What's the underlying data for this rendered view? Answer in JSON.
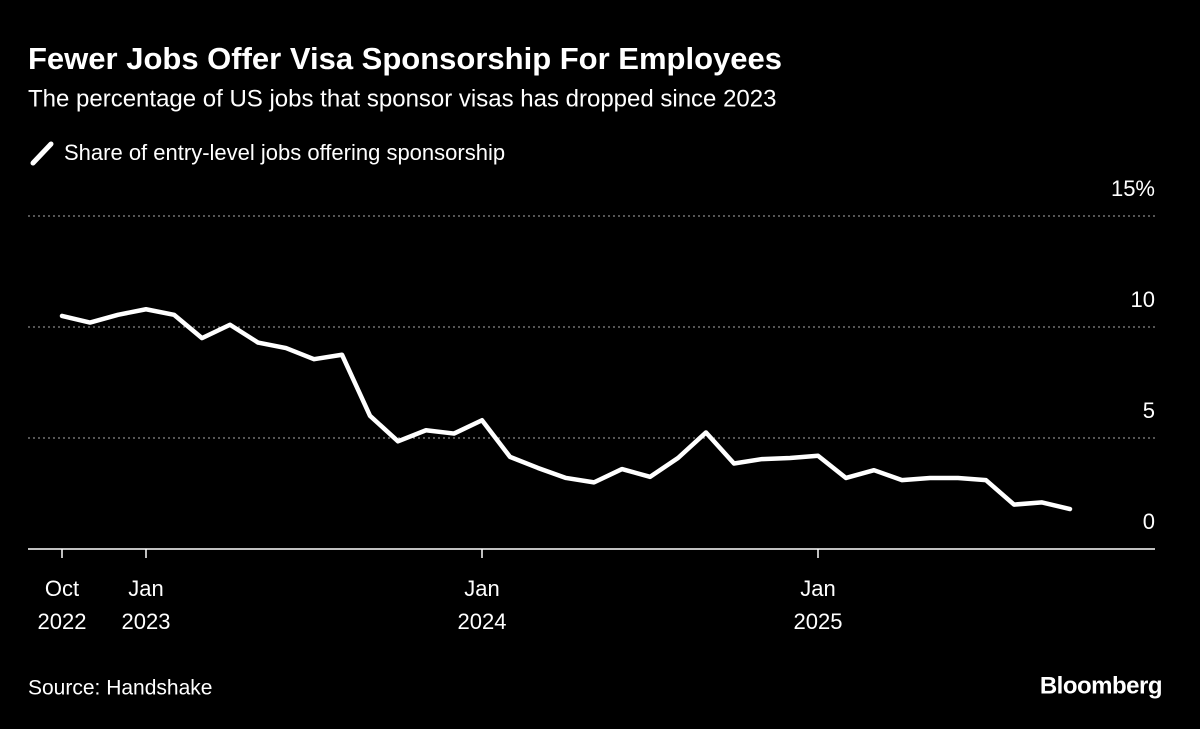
{
  "chart_data": {
    "type": "line",
    "title": "Fewer Jobs Offer Visa Sponsorship For Employees",
    "subtitle": "The percentage of US jobs that sponsor visas has dropped since 2023",
    "source": "Source: Handshake",
    "brand": "Bloomberg",
    "x": [
      "2022-10",
      "2022-11",
      "2022-12",
      "2023-01",
      "2023-02",
      "2023-03",
      "2023-04",
      "2023-05",
      "2023-06",
      "2023-07",
      "2023-08",
      "2023-09",
      "2023-10",
      "2023-11",
      "2023-12",
      "2024-01",
      "2024-02",
      "2024-03",
      "2024-04",
      "2024-05",
      "2024-06",
      "2024-07",
      "2024-08",
      "2024-09",
      "2024-10",
      "2024-11",
      "2024-12",
      "2025-01",
      "2025-02",
      "2025-03",
      "2025-04",
      "2025-05",
      "2025-06",
      "2025-07",
      "2025-08",
      "2025-09",
      "2025-10"
    ],
    "series": [
      {
        "name": "Share of entry-level jobs offering sponsorship",
        "color": "#ffffff",
        "values": [
          10.5,
          10.2,
          10.55,
          10.8,
          10.55,
          9.5,
          10.1,
          9.3,
          9.05,
          8.55,
          8.75,
          6.0,
          4.85,
          5.35,
          5.2,
          5.8,
          4.15,
          3.65,
          3.2,
          3.0,
          3.6,
          3.25,
          4.1,
          5.25,
          3.85,
          4.05,
          4.1,
          4.2,
          3.2,
          3.55,
          3.1,
          3.2,
          3.2,
          3.1,
          2.0,
          2.1,
          1.8
        ]
      }
    ],
    "xlim": [
      "2022-09",
      "2026-01"
    ],
    "xticks": [
      {
        "value": "2022-10",
        "label": [
          "Oct",
          "2022"
        ]
      },
      {
        "value": "2023-01",
        "label": [
          "Jan",
          "2023"
        ]
      },
      {
        "value": "2024-01",
        "label": [
          "Jan",
          "2024"
        ]
      },
      {
        "value": "2025-01",
        "label": [
          "Jan",
          "2025"
        ]
      }
    ],
    "ylim": [
      0,
      15
    ],
    "yticks": [
      0,
      5,
      10,
      {
        "value": 15,
        "label": "15%"
      }
    ],
    "grid": true
  }
}
